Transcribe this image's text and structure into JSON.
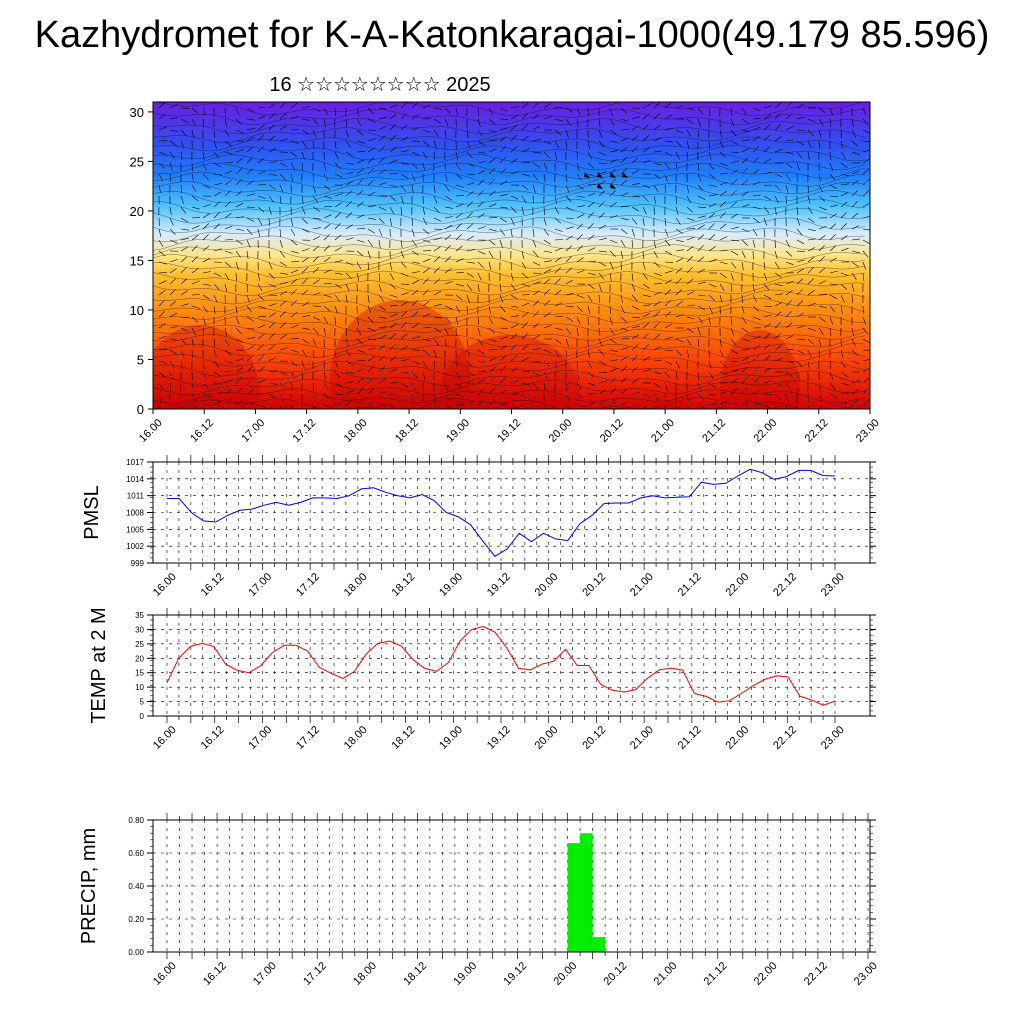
{
  "title": "Kazhydromet for K-A-Katonkaragai-1000(49.179 85.596)",
  "subtitle": "16 ☆☆☆☆☆☆☆☆ 2025",
  "chart_data": [
    {
      "type": "heatmap",
      "name": "vertical-cross-section",
      "x_ticks": [
        "16.00",
        "16.12",
        "17.00",
        "17.12",
        "18.00",
        "18.12",
        "19.00",
        "19.12",
        "20.00",
        "20.12",
        "21.00",
        "21.12",
        "22.00",
        "22.12",
        "23.00"
      ],
      "y_ticks": [
        0,
        5,
        10,
        15,
        20,
        25,
        30
      ],
      "ylim": [
        0,
        31
      ],
      "colormap": [
        "#d00000",
        "#ff4a00",
        "#ff8c10",
        "#ffc030",
        "#ffe58a",
        "#d8ecff",
        "#4fc3ff",
        "#1f7fff",
        "#3050f0",
        "#6a1fe0"
      ],
      "features": "filled contours with wind barbs"
    },
    {
      "type": "line",
      "ylabel": "PMSL",
      "x_ticks": [
        "16.00",
        "16.12",
        "17.00",
        "17.12",
        "18.00",
        "18.12",
        "19.00",
        "19.12",
        "20.00",
        "20.12",
        "21.00",
        "21.12",
        "22.00",
        "22.12",
        "23.00"
      ],
      "y_ticks": [
        999,
        1002,
        1005,
        1008,
        1011,
        1014,
        1017
      ],
      "ylim": [
        999,
        1017
      ],
      "color": "#0000ff",
      "values": [
        1010.5,
        1010.5,
        1008,
        1006.5,
        1006.3,
        1007.5,
        1008.4,
        1008.6,
        1009.3,
        1009.8,
        1009.3,
        1009.8,
        1010.6,
        1010.6,
        1010.5,
        1011,
        1012.2,
        1012.4,
        1011.6,
        1011,
        1010.6,
        1011.2,
        1010.1,
        1008,
        1007.2,
        1005.8,
        1002.9,
        1000.2,
        1001.5,
        1004.3,
        1002.8,
        1004.3,
        1003.3,
        1003,
        1006,
        1007.5,
        1009.6,
        1009.7,
        1009.7,
        1010.6,
        1011,
        1010.6,
        1010.7,
        1010.8,
        1013.4,
        1013,
        1013.2,
        1014.5,
        1015.7,
        1015.1,
        1013.9,
        1014.4,
        1015.5,
        1015.5,
        1014.6,
        1014.5
      ]
    },
    {
      "type": "line",
      "ylabel": "TEMP at 2 M",
      "x_ticks": [
        "16.00",
        "16.12",
        "17.00",
        "17.12",
        "18.00",
        "18.12",
        "19.00",
        "19.12",
        "20.00",
        "20.12",
        "21.00",
        "21.12",
        "22.00",
        "22.12",
        "23.00"
      ],
      "y_ticks": [
        0,
        5,
        10,
        15,
        20,
        25,
        30,
        35
      ],
      "ylim": [
        0,
        35
      ],
      "color": "#ff0000",
      "values": [
        11.5,
        20,
        24.1,
        25.2,
        24,
        18,
        15.8,
        15,
        17.5,
        22,
        24.5,
        24.5,
        22.5,
        16.8,
        14.8,
        13,
        15.5,
        21.5,
        25.2,
        26,
        24.2,
        19.5,
        16.5,
        15.5,
        18.5,
        26,
        30,
        31,
        29,
        23.5,
        16.5,
        16,
        18,
        19,
        23.1,
        17.5,
        17.5,
        11,
        8.9,
        8.3,
        9.2,
        13.1,
        16,
        16.6,
        15.9,
        7.8,
        6.8,
        4.8,
        5.3,
        7.8,
        10.5,
        12.7,
        13.9,
        13.5,
        6.9,
        5.5,
        3.7,
        5.2
      ]
    },
    {
      "type": "bar",
      "ylabel": "PRECIP, mm",
      "x_ticks": [
        "16.00",
        "16.12",
        "17.00",
        "17.12",
        "18.00",
        "18.12",
        "19.00",
        "19.12",
        "20.00",
        "20.12",
        "21.00",
        "21.12",
        "22.00",
        "22.12",
        "23.00"
      ],
      "y_ticks": [
        "0.00",
        "0.20",
        "0.40",
        "0.60",
        "0.80"
      ],
      "ylim": [
        0,
        0.8
      ],
      "color": "#00ee00",
      "bars": [
        {
          "x": "20.00",
          "value": 0.66
        },
        {
          "x": "20.03",
          "value": 0.72
        },
        {
          "x": "20.06",
          "value": 0.09
        }
      ]
    }
  ]
}
